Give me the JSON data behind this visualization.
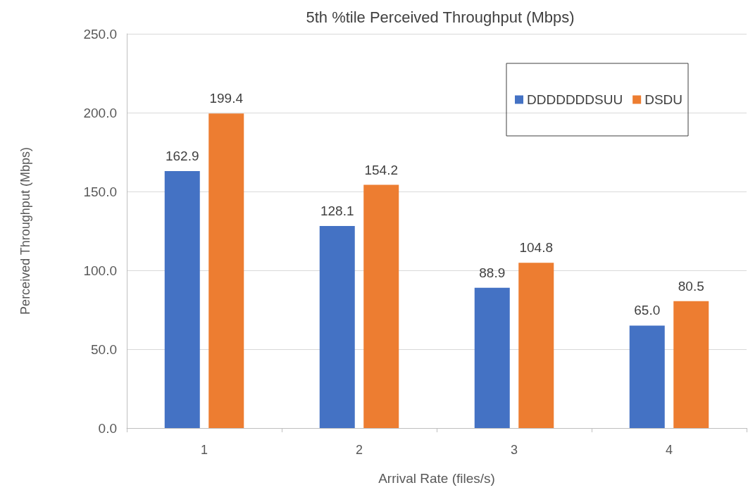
{
  "chart_data": {
    "type": "bar",
    "title": "5th %tile Perceived Throughput (Mbps)",
    "xlabel": "Arrival Rate (files/s)",
    "ylabel": "Perceived Throughput (Mbps)",
    "categories": [
      "1",
      "2",
      "3",
      "4"
    ],
    "series": [
      {
        "name": "DDDDDDDSUU",
        "color": "#4472c4",
        "values": [
          162.9,
          128.1,
          88.9,
          65.0
        ],
        "value_labels": [
          "162.9",
          "128.1",
          "88.9",
          "65.0"
        ]
      },
      {
        "name": "DSDU",
        "color": "#ed7d31",
        "values": [
          199.4,
          154.2,
          104.8,
          80.5
        ],
        "value_labels": [
          "199.4",
          "154.2",
          "104.8",
          "80.5"
        ]
      }
    ],
    "ylim": [
      0,
      250
    ],
    "yticks": [
      {
        "value": 0,
        "label": "0.0"
      },
      {
        "value": 50,
        "label": "50.0"
      },
      {
        "value": 100,
        "label": "100.0"
      },
      {
        "value": 150,
        "label": "150.0"
      },
      {
        "value": 200,
        "label": "200.0"
      },
      {
        "value": 250,
        "label": "250.0"
      }
    ],
    "grid": "y",
    "legend": "top right"
  }
}
